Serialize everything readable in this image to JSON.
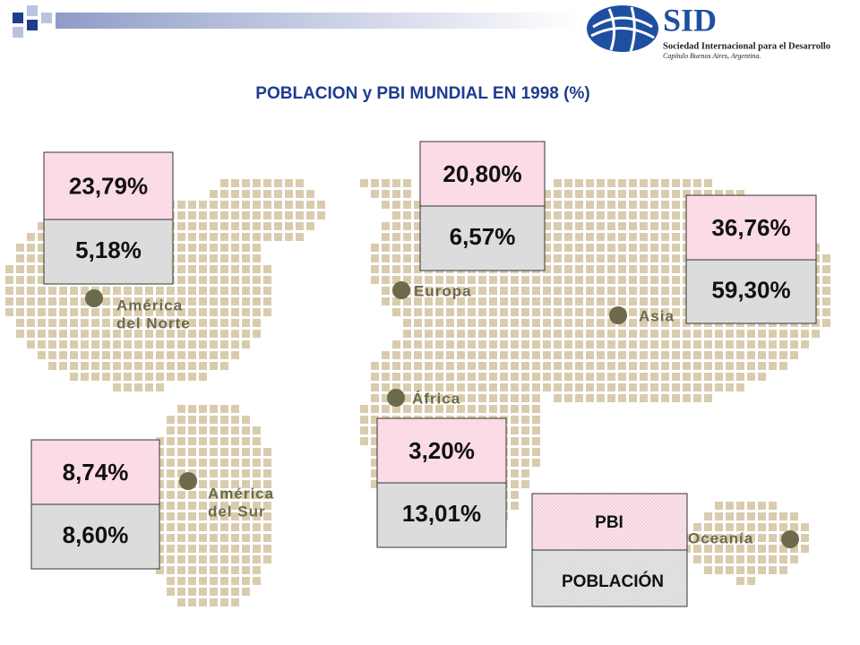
{
  "header": {
    "title": "POBLACION y PBI MUNDIAL EN 1998 (%)",
    "logo": {
      "name": "SID",
      "line1": "Sociedad Internacional para el Desarrollo",
      "line2": "Capítulo Buenos Aires, Argentina."
    }
  },
  "regions": [
    {
      "label_lines": [
        "América",
        "del Norte"
      ],
      "pbi": "23,79%",
      "poblacion": "5,18%"
    },
    {
      "label_lines": [
        "Europa"
      ],
      "pbi": "20,80%",
      "poblacion": "6,57%"
    },
    {
      "label_lines": [
        "Asia"
      ],
      "pbi": "36,76%",
      "poblacion": "59,30%"
    },
    {
      "label_lines": [
        "América",
        "del Sur"
      ],
      "pbi": "8,74%",
      "poblacion": "8,60%"
    },
    {
      "label_lines": [
        "África"
      ],
      "pbi": "3,20%",
      "poblacion": "13,01%"
    },
    {
      "label_lines": [
        "Oceanía"
      ]
    }
  ],
  "legend": {
    "pbi": "PBI",
    "poblacion": "POBLACIÓN"
  }
}
